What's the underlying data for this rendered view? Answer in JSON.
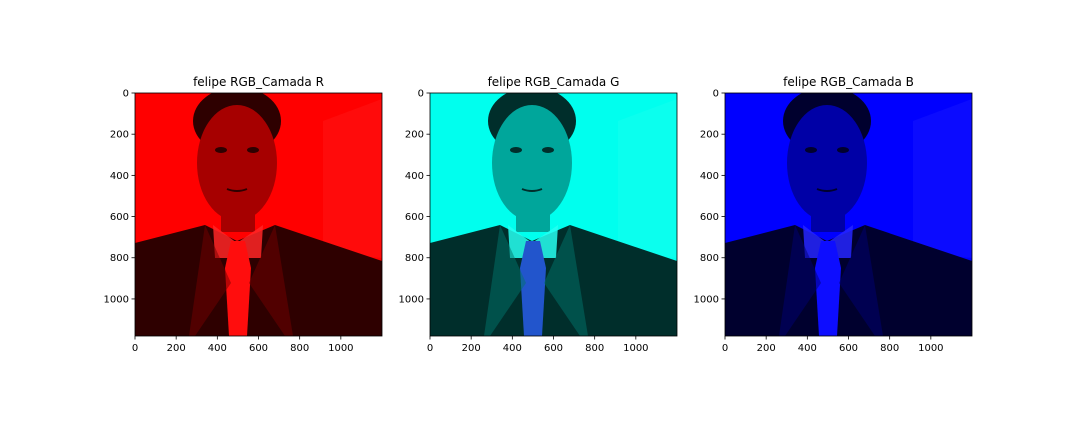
{
  "chart_data": [
    {
      "type": "image",
      "title": "felipe RGB_Camada R",
      "channel": "R",
      "tint": "#ff0000",
      "xlim": [
        0,
        1200
      ],
      "ylim": [
        1180,
        0
      ],
      "xticks": [
        0,
        200,
        400,
        600,
        800,
        1000
      ],
      "yticks": [
        0,
        200,
        400,
        600,
        800,
        1000
      ]
    },
    {
      "type": "image",
      "title": "felipe RGB_Camada G",
      "channel": "G",
      "tint": "#00ffee",
      "xlim": [
        0,
        1200
      ],
      "ylim": [
        1180,
        0
      ],
      "xticks": [
        0,
        200,
        400,
        600,
        800,
        1000
      ],
      "yticks": [
        0,
        200,
        400,
        600,
        800,
        1000
      ]
    },
    {
      "type": "image",
      "title": "felipe RGB_Camada B",
      "channel": "B",
      "tint": "#0000ff",
      "xlim": [
        0,
        1200
      ],
      "ylim": [
        1180,
        0
      ],
      "xticks": [
        0,
        200,
        400,
        600,
        800,
        1000
      ],
      "yticks": [
        0,
        200,
        400,
        600,
        800,
        1000
      ]
    }
  ]
}
